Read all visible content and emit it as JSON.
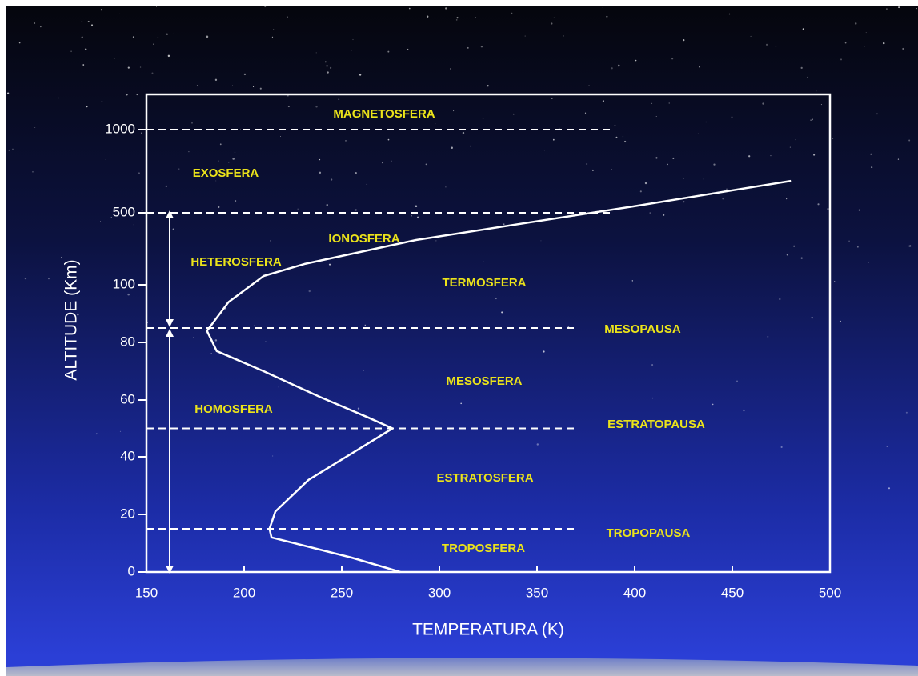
{
  "chart_data": {
    "type": "line",
    "xlabel": "TEMPERATURA (K)",
    "ylabel": "ALTITUDE (Km)",
    "x": [
      280,
      255,
      214,
      213,
      216,
      233,
      257,
      276,
      263,
      239,
      210,
      186,
      181,
      192,
      210,
      231,
      288,
      399,
      480
    ],
    "series": [
      {
        "color": "#ffffff",
        "values": [
          0,
          5,
          12,
          15,
          21,
          32,
          42,
          50,
          54,
          61,
          70,
          77,
          84,
          94,
          149,
          216,
          349,
          538,
          692
        ]
      }
    ],
    "xlim": [
      150,
      500
    ],
    "xticks": [
      150,
      200,
      250,
      300,
      350,
      400,
      450,
      500
    ],
    "ylim": [
      0,
      1200
    ],
    "yticks": [
      0,
      20,
      40,
      60,
      80,
      100,
      500,
      1000
    ],
    "reference_lines": [
      {
        "y": 1000,
        "x_end": 390
      },
      {
        "y": 500,
        "x_end": 390
      },
      {
        "y": 85,
        "x_end": 370
      },
      {
        "y": 50,
        "x_end": 370
      },
      {
        "y": 15,
        "x_end": 370
      }
    ],
    "annotations": [
      "MAGNETOSFERA",
      "EXOSFERA",
      "IONOSFERA",
      "HETEROSFERA",
      "TERMOSFERA",
      "MESOPAUSA",
      "MESOSFERA",
      "HOMOSFERA",
      "ESTRATOPAUSA",
      "ESTRATOSFERA",
      "TROPOPAUSA",
      "TROPOSFERA"
    ],
    "annotation_color": "#ebe31a"
  }
}
